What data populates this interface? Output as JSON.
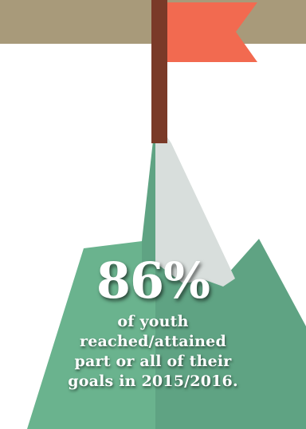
{
  "colors": {
    "banner": "#A89A7A",
    "flag": "#F26A50",
    "pole": "#7A3A28",
    "mountain_light": "#6AB38E",
    "mountain_dark": "#5FA383",
    "snow": "#D8DEDC",
    "text": "#FFFFFF"
  },
  "statistic": {
    "value": "86%",
    "lines": [
      "of youth",
      "reached/attained",
      "part or all of their",
      "goals in 2015/2016."
    ]
  }
}
